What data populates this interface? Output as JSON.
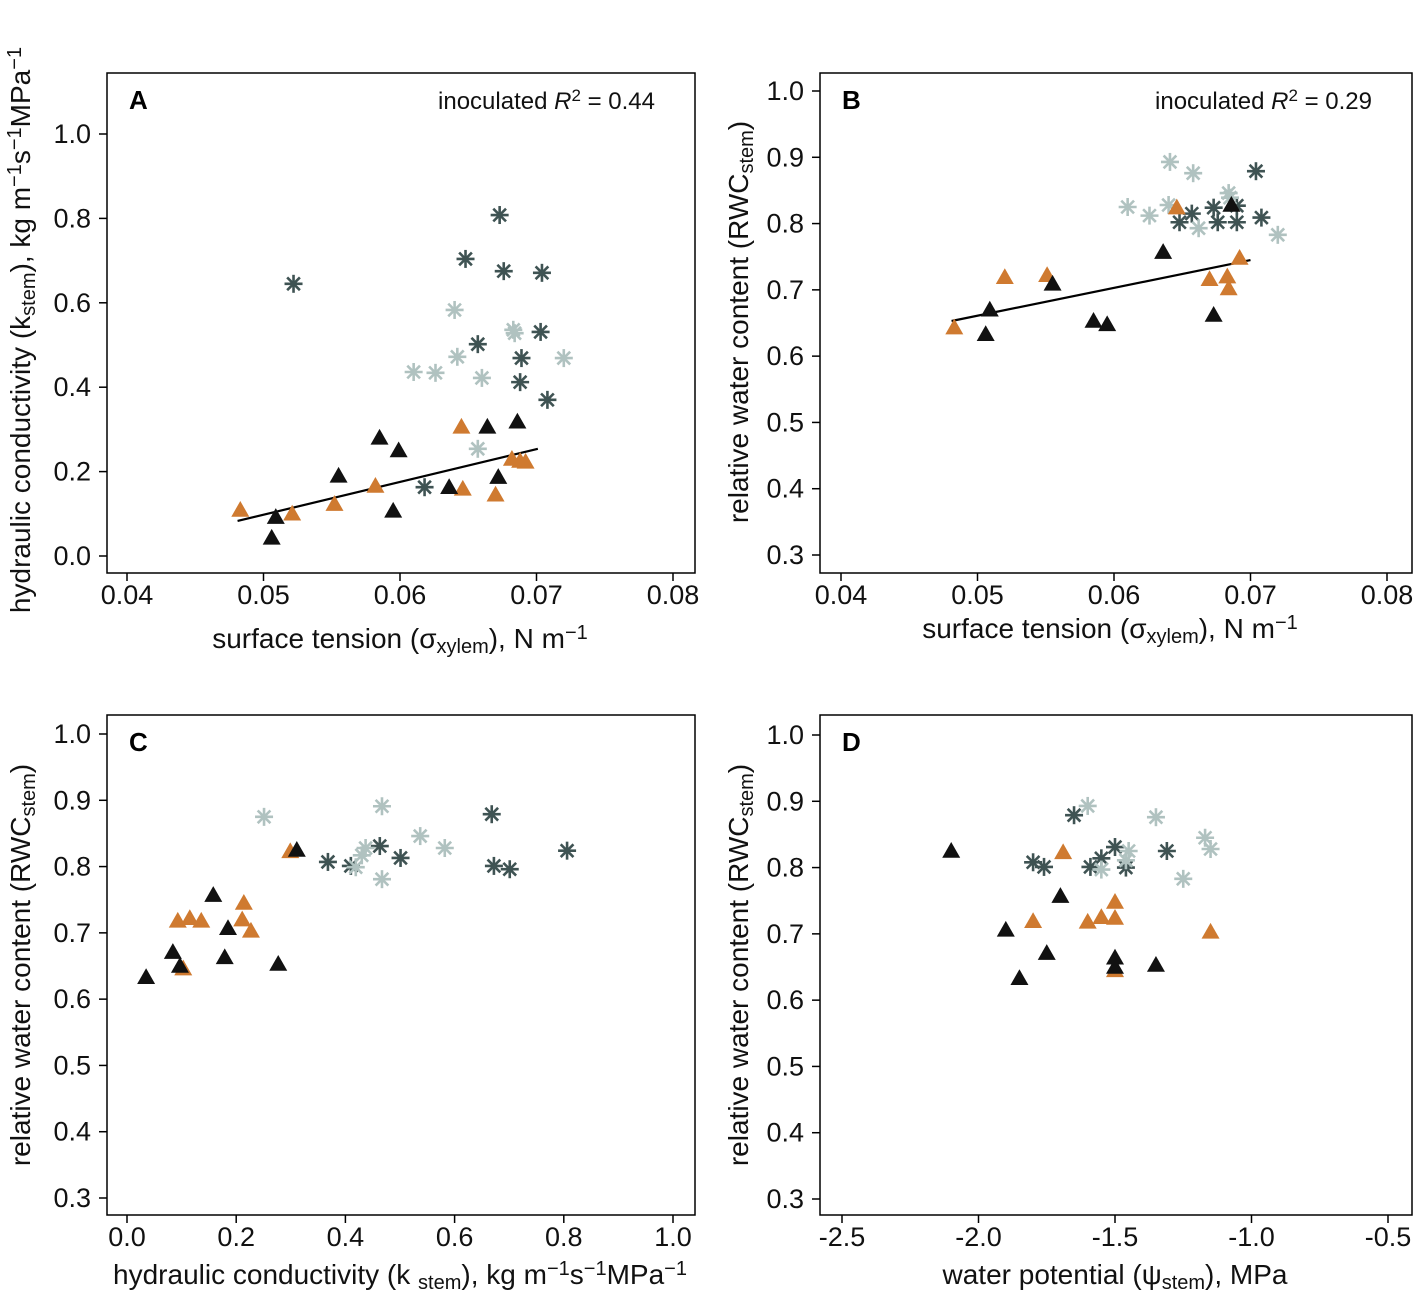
{
  "colors": {
    "black_triangle": "#111111",
    "orange_triangle": "#cf7a30",
    "dark_asterisk": "#3f5353",
    "light_asterisk": "#b0c2c0",
    "line": "#000000"
  },
  "chart_data": [
    {
      "id": "A",
      "type": "scatter",
      "panel_label": "A",
      "annotation": {
        "group": "inoculated",
        "r2_label": "R",
        "r2_sup": "2",
        "r2_value": "= 0.44"
      },
      "xlabel": [
        {
          "t": "surface tension ("
        },
        {
          "t": "σ"
        },
        {
          "t": "xylem",
          "sub": true
        },
        {
          "t": "), N m"
        },
        {
          "t": "−1",
          "sup": true
        }
      ],
      "ylabel": [
        {
          "t": "hydraulic conductivity (k"
        },
        {
          "t": "stem",
          "sub": true
        },
        {
          "t": "), kg m"
        },
        {
          "t": "−1",
          "sup": true
        },
        {
          "t": "s"
        },
        {
          "t": "−1",
          "sup": true
        },
        {
          "t": "MPa"
        },
        {
          "t": "−1",
          "sup": true
        }
      ],
      "xlim": [
        0.04,
        0.08
      ],
      "ylim": [
        0.0,
        1.0
      ],
      "xticks": [
        "0.04",
        "0.05",
        "0.06",
        "0.07",
        "0.08"
      ],
      "yticks": [
        "0.0",
        "0.2",
        "0.4",
        "0.6",
        "0.8",
        "1.0"
      ],
      "fit_line": [
        [
          0.0481,
          0.083
        ],
        [
          0.0701,
          0.254
        ]
      ],
      "series": [
        {
          "name": "black triangles",
          "marker": "triangle",
          "color": "black_triangle",
          "points": [
            [
              0.0506,
              0.043
            ],
            [
              0.0509,
              0.092
            ],
            [
              0.0555,
              0.19
            ],
            [
              0.0585,
              0.28
            ],
            [
              0.0599,
              0.25
            ],
            [
              0.0595,
              0.107
            ],
            [
              0.0636,
              0.163
            ],
            [
              0.0664,
              0.306
            ],
            [
              0.0672,
              0.187
            ],
            [
              0.0686,
              0.318
            ]
          ]
        },
        {
          "name": "orange triangles",
          "marker": "triangle",
          "color": "orange_triangle",
          "points": [
            [
              0.0483,
              0.109
            ],
            [
              0.0521,
              0.1
            ],
            [
              0.0552,
              0.123
            ],
            [
              0.0582,
              0.166
            ],
            [
              0.0645,
              0.306
            ],
            [
              0.0646,
              0.159
            ],
            [
              0.067,
              0.145
            ],
            [
              0.0682,
              0.23
            ],
            [
              0.0688,
              0.225
            ],
            [
              0.0692,
              0.223
            ]
          ]
        },
        {
          "name": "dark asterisks",
          "marker": "asterisk",
          "color": "dark_asterisk",
          "points": [
            [
              0.0522,
              0.645
            ],
            [
              0.0618,
              0.163
            ],
            [
              0.0648,
              0.704
            ],
            [
              0.0673,
              0.808
            ],
            [
              0.0676,
              0.675
            ],
            [
              0.0657,
              0.502
            ],
            [
              0.0704,
              0.671
            ],
            [
              0.0703,
              0.531
            ],
            [
              0.0689,
              0.469
            ],
            [
              0.0688,
              0.412
            ],
            [
              0.0708,
              0.37
            ]
          ]
        },
        {
          "name": "light asterisks",
          "marker": "asterisk",
          "color": "light_asterisk",
          "points": [
            [
              0.061,
              0.436
            ],
            [
              0.0626,
              0.434
            ],
            [
              0.064,
              0.583
            ],
            [
              0.0642,
              0.472
            ],
            [
              0.066,
              0.422
            ],
            [
              0.0657,
              0.254
            ],
            [
              0.0683,
              0.536
            ],
            [
              0.0684,
              0.528
            ],
            [
              0.072,
              0.469
            ]
          ]
        }
      ]
    },
    {
      "id": "B",
      "type": "scatter",
      "panel_label": "B",
      "annotation": {
        "group": "inoculated",
        "r2_label": "R",
        "r2_sup": "2",
        "r2_value": "= 0.29"
      },
      "xlabel": [
        {
          "t": "surface tension ("
        },
        {
          "t": "σ"
        },
        {
          "t": "xylem",
          "sub": true
        },
        {
          "t": "), N m"
        },
        {
          "t": "−1",
          "sup": true
        }
      ],
      "ylabel": [
        {
          "t": "relative water content (RWC"
        },
        {
          "t": "stem",
          "sub": true
        },
        {
          "t": ")"
        }
      ],
      "xlim": [
        0.04,
        0.08
      ],
      "ylim": [
        0.3,
        1.0
      ],
      "xticks": [
        "0.04",
        "0.05",
        "0.06",
        "0.07",
        "0.08"
      ],
      "yticks": [
        "0.3",
        "0.4",
        "0.5",
        "0.6",
        "0.7",
        "0.8",
        "0.9",
        "1.0"
      ],
      "fit_line": [
        [
          0.0481,
          0.653
        ],
        [
          0.07,
          0.745
        ]
      ],
      "series": [
        {
          "name": "black triangles",
          "marker": "triangle",
          "color": "black_triangle",
          "points": [
            [
              0.0509,
              0.67
            ],
            [
              0.0506,
              0.633
            ],
            [
              0.0555,
              0.709
            ],
            [
              0.0585,
              0.653
            ],
            [
              0.0595,
              0.648
            ],
            [
              0.0636,
              0.757
            ],
            [
              0.0673,
              0.662
            ],
            [
              0.0686,
              0.828
            ]
          ]
        },
        {
          "name": "orange triangles",
          "marker": "triangle",
          "color": "orange_triangle",
          "points": [
            [
              0.0483,
              0.643
            ],
            [
              0.052,
              0.719
            ],
            [
              0.0551,
              0.722
            ],
            [
              0.0646,
              0.824
            ],
            [
              0.067,
              0.716
            ],
            [
              0.0683,
              0.72
            ],
            [
              0.0684,
              0.702
            ],
            [
              0.0692,
              0.748
            ]
          ]
        },
        {
          "name": "dark asterisks",
          "marker": "asterisk",
          "color": "dark_asterisk",
          "points": [
            [
              0.0648,
              0.802
            ],
            [
              0.0657,
              0.815
            ],
            [
              0.0673,
              0.824
            ],
            [
              0.0676,
              0.802
            ],
            [
              0.069,
              0.827
            ],
            [
              0.069,
              0.802
            ],
            [
              0.0704,
              0.879
            ],
            [
              0.0708,
              0.809
            ]
          ]
        },
        {
          "name": "light asterisks",
          "marker": "asterisk",
          "color": "light_asterisk",
          "points": [
            [
              0.061,
              0.825
            ],
            [
              0.0626,
              0.812
            ],
            [
              0.0641,
              0.893
            ],
            [
              0.064,
              0.828
            ],
            [
              0.0658,
              0.876
            ],
            [
              0.0662,
              0.793
            ],
            [
              0.0684,
              0.846
            ],
            [
              0.0685,
              0.839
            ],
            [
              0.072,
              0.783
            ]
          ]
        }
      ]
    },
    {
      "id": "C",
      "type": "scatter",
      "panel_label": "C",
      "xlabel": [
        {
          "t": "hydraulic conductivity (k "
        },
        {
          "t": "stem",
          "sub": true
        },
        {
          "t": "), kg m"
        },
        {
          "t": "−1",
          "sup": true
        },
        {
          "t": "s"
        },
        {
          "t": "−1",
          "sup": true
        },
        {
          "t": "MPa"
        },
        {
          "t": "−1",
          "sup": true
        }
      ],
      "ylabel": [
        {
          "t": "relative water content (RWC"
        },
        {
          "t": "stem",
          "sub": true
        },
        {
          "t": ")"
        }
      ],
      "xlim": [
        0.0,
        1.0
      ],
      "ylim": [
        0.3,
        1.0
      ],
      "xticks": [
        "0.0",
        "0.2",
        "0.4",
        "0.6",
        "0.8",
        "1.0"
      ],
      "yticks": [
        "0.3",
        "0.4",
        "0.5",
        "0.6",
        "0.7",
        "0.8",
        "0.9",
        "1.0"
      ],
      "series": [
        {
          "name": "black triangles",
          "marker": "triangle",
          "color": "black_triangle",
          "points": [
            [
              0.035,
              0.633
            ],
            [
              0.084,
              0.671
            ],
            [
              0.097,
              0.65
            ],
            [
              0.158,
              0.757
            ],
            [
              0.185,
              0.707
            ],
            [
              0.179,
              0.663
            ],
            [
              0.277,
              0.653
            ],
            [
              0.311,
              0.825
            ]
          ]
        },
        {
          "name": "orange triangles",
          "marker": "triangle",
          "color": "orange_triangle",
          "points": [
            [
              0.093,
              0.718
            ],
            [
              0.115,
              0.722
            ],
            [
              0.136,
              0.718
            ],
            [
              0.103,
              0.646
            ],
            [
              0.214,
              0.745
            ],
            [
              0.211,
              0.72
            ],
            [
              0.227,
              0.703
            ],
            [
              0.299,
              0.823
            ]
          ]
        },
        {
          "name": "dark asterisks",
          "marker": "asterisk",
          "color": "dark_asterisk",
          "points": [
            [
              0.368,
              0.807
            ],
            [
              0.41,
              0.801
            ],
            [
              0.463,
              0.831
            ],
            [
              0.501,
              0.813
            ],
            [
              0.668,
              0.879
            ],
            [
              0.672,
              0.801
            ],
            [
              0.701,
              0.796
            ],
            [
              0.806,
              0.824
            ]
          ]
        },
        {
          "name": "light asterisks",
          "marker": "asterisk",
          "color": "light_asterisk",
          "points": [
            [
              0.251,
              0.875
            ],
            [
              0.419,
              0.799
            ],
            [
              0.43,
              0.817
            ],
            [
              0.437,
              0.828
            ],
            [
              0.467,
              0.891
            ],
            [
              0.467,
              0.781
            ],
            [
              0.537,
              0.846
            ],
            [
              0.582,
              0.828
            ]
          ]
        }
      ]
    },
    {
      "id": "D",
      "type": "scatter",
      "panel_label": "D",
      "xlabel": [
        {
          "t": "water potential ("
        },
        {
          "t": "ψ"
        },
        {
          "t": "stem",
          "sub": true
        },
        {
          "t": "), MPa"
        }
      ],
      "ylabel": [
        {
          "t": "relative water content (RWC"
        },
        {
          "t": "stem",
          "sub": true
        },
        {
          "t": ")"
        }
      ],
      "xlim": [
        -2.5,
        -0.5
      ],
      "ylim": [
        0.3,
        1.0
      ],
      "xticks": [
        "-2.5",
        "-2.0",
        "-1.5",
        "-1.0",
        "-0.5"
      ],
      "yticks": [
        "0.3",
        "0.4",
        "0.5",
        "0.6",
        "0.7",
        "0.8",
        "0.9",
        "1.0"
      ],
      "series": [
        {
          "name": "black triangles",
          "marker": "triangle",
          "color": "black_triangle",
          "points": [
            [
              -2.1,
              0.825
            ],
            [
              -1.9,
              0.706
            ],
            [
              -1.85,
              0.633
            ],
            [
              -1.75,
              0.671
            ],
            [
              -1.7,
              0.757
            ],
            [
              -1.5,
              0.664
            ],
            [
              -1.5,
              0.65
            ],
            [
              -1.35,
              0.653
            ]
          ]
        },
        {
          "name": "orange triangles",
          "marker": "triangle",
          "color": "orange_triangle",
          "points": [
            [
              -1.8,
              0.719
            ],
            [
              -1.69,
              0.823
            ],
            [
              -1.6,
              0.718
            ],
            [
              -1.55,
              0.725
            ],
            [
              -1.5,
              0.748
            ],
            [
              -1.5,
              0.724
            ],
            [
              -1.5,
              0.645
            ],
            [
              -1.15,
              0.703
            ]
          ]
        },
        {
          "name": "dark asterisks",
          "marker": "asterisk",
          "color": "dark_asterisk",
          "points": [
            [
              -1.8,
              0.808
            ],
            [
              -1.76,
              0.801
            ],
            [
              -1.65,
              0.879
            ],
            [
              -1.59,
              0.801
            ],
            [
              -1.55,
              0.814
            ],
            [
              -1.5,
              0.831
            ],
            [
              -1.46,
              0.8
            ],
            [
              -1.31,
              0.825
            ]
          ]
        },
        {
          "name": "light asterisks",
          "marker": "asterisk",
          "color": "light_asterisk",
          "points": [
            [
              -1.6,
              0.893
            ],
            [
              -1.55,
              0.797
            ],
            [
              -1.45,
              0.825
            ],
            [
              -1.46,
              0.811
            ],
            [
              -1.35,
              0.876
            ],
            [
              -1.25,
              0.783
            ],
            [
              -1.17,
              0.845
            ],
            [
              -1.15,
              0.828
            ]
          ]
        }
      ]
    }
  ]
}
